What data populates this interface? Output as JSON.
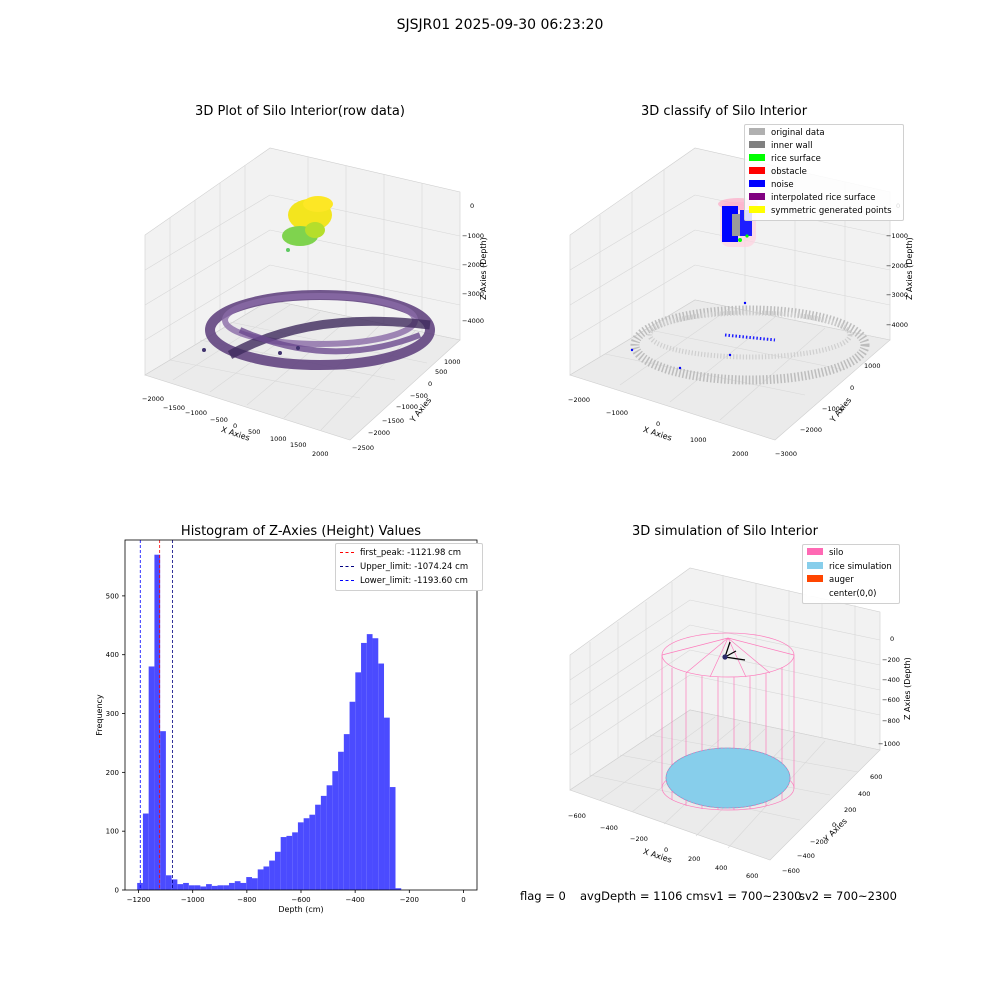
{
  "figure_title": "SJSJR01 2025-09-30 06:23:20",
  "panels": {
    "raw": {
      "title": "3D Plot of Silo Interior(row data)",
      "xlabel": "X Axies",
      "ylabel": "Y Axies",
      "zlabel": "Z Axies (Depth)",
      "xticks": [
        "−2000",
        "−1500",
        "−1000",
        "−500",
        "0",
        "500",
        "1000",
        "1500",
        "2000"
      ],
      "yticks": [
        "1000",
        "500",
        "0",
        "−500",
        "−1000",
        "−1500",
        "−2000",
        "−2500"
      ],
      "zticks": [
        "0",
        "−1000",
        "−2000",
        "−3000",
        "−4000"
      ]
    },
    "classify": {
      "title": "3D classify of Silo Interior",
      "xlabel": "X Axies",
      "ylabel": "Y Axies",
      "zlabel": "Z Axies (Depth)",
      "xticks": [
        "−2000",
        "−1000",
        "0",
        "1000",
        "2000"
      ],
      "yticks": [
        "1000",
        "0",
        "−1000",
        "−2000",
        "−3000"
      ],
      "zticks": [
        "0",
        "−1000",
        "−2000",
        "−3000",
        "−4000"
      ],
      "legend": [
        {
          "label": "original data",
          "color": "#b0b0b0"
        },
        {
          "label": "inner wall",
          "color": "#808080"
        },
        {
          "label": "rice surface",
          "color": "#00ff00"
        },
        {
          "label": "obstacle",
          "color": "#ff0000"
        },
        {
          "label": "noise",
          "color": "#0000ff"
        },
        {
          "label": "interpolated rice surface",
          "color": "#800080"
        },
        {
          "label": "symmetric generated points",
          "color": "#ffff00"
        }
      ]
    },
    "simulation": {
      "title": "3D simulation of Silo Interior",
      "xlabel": "X Axies",
      "ylabel": "Y Axies",
      "zlabel": "Z Axies (Depth)",
      "xticks": [
        "−600",
        "−400",
        "−200",
        "0",
        "200",
        "400",
        "600"
      ],
      "yticks": [
        "600",
        "400",
        "200",
        "0",
        "−200",
        "−400",
        "−600"
      ],
      "zticks": [
        "0",
        "−200",
        "−400",
        "−600",
        "−800",
        "−1000"
      ],
      "legend": [
        {
          "label": "silo",
          "color": "#ff69b4"
        },
        {
          "label": "rice simulation",
          "color": "#87ceeb"
        },
        {
          "label": "auger",
          "color": "#ff4500"
        },
        {
          "label": "center(0,0)",
          "color": "#ffffff"
        }
      ]
    }
  },
  "chart_data": {
    "type": "bar",
    "title": "Histogram of Z-Axies (Height) Values",
    "xlabel": "Depth (cm)",
    "ylabel": "Frequency",
    "xlim": [
      -1250,
      50
    ],
    "ylim": [
      0,
      595
    ],
    "xticks": [
      -1200,
      -1000,
      -800,
      -600,
      -400,
      -200,
      0
    ],
    "xtick_labels": [
      "−1200",
      "−1000",
      "−800",
      "−600",
      "−400",
      "−200",
      "0"
    ],
    "yticks": [
      0,
      100,
      200,
      300,
      400,
      500
    ],
    "yticklabels": [
      "0",
      "100",
      "200",
      "300",
      "400",
      "500"
    ],
    "bar_color": "#4b4bff",
    "bin_start": -1205,
    "bin_width": 21.2,
    "values": [
      12,
      130,
      380,
      570,
      270,
      25,
      18,
      10,
      12,
      8,
      8,
      6,
      10,
      7,
      8,
      8,
      12,
      15,
      12,
      22,
      20,
      35,
      40,
      50,
      65,
      90,
      92,
      98,
      115,
      122,
      128,
      145,
      160,
      178,
      202,
      235,
      265,
      320,
      370,
      420,
      435,
      428,
      385,
      293,
      175,
      3
    ],
    "vlines": [
      {
        "x": -1121.98,
        "color": "#ff0000",
        "label": "first_peak: -1121.98 cm"
      },
      {
        "x": -1074.24,
        "color": "#000080",
        "label": "Upper_limit: -1074.24 cm"
      },
      {
        "x": -1193.6,
        "color": "#0000ff",
        "label": "Lower_limit: -1193.60 cm"
      }
    ]
  },
  "footer": {
    "flag": "flag = 0",
    "avg": "avgDepth = 1106 cmsv1 = 700~2300",
    "sv2": "sv2 = 700~2300"
  }
}
